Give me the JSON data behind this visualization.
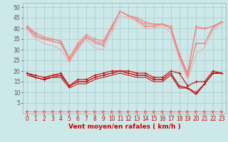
{
  "x": [
    0,
    1,
    2,
    3,
    4,
    5,
    6,
    7,
    8,
    9,
    10,
    11,
    12,
    13,
    14,
    15,
    16,
    17,
    18,
    19,
    20,
    21,
    22,
    23
  ],
  "series": [
    {
      "y": [
        41,
        38,
        36,
        35,
        34,
        26,
        33,
        37,
        35,
        34,
        41,
        48,
        46,
        45,
        43,
        42,
        42,
        41,
        28,
        19,
        41,
        40,
        41,
        43
      ],
      "color": "#f08080",
      "marker": "+",
      "lw": 0.8,
      "ms": 3
    },
    {
      "y": [
        41,
        37,
        35,
        35,
        34,
        26,
        32,
        36,
        34,
        33,
        40,
        48,
        46,
        44,
        42,
        42,
        42,
        40,
        28,
        19,
        40,
        40,
        41,
        43
      ],
      "color": "#f08080",
      "marker": null,
      "lw": 0.7,
      "ms": 0
    },
    {
      "y": [
        40,
        37,
        35,
        34,
        33,
        25,
        31,
        36,
        34,
        32,
        40,
        48,
        46,
        44,
        41,
        41,
        42,
        40,
        27,
        18,
        33,
        33,
        41,
        43
      ],
      "color": "#f08080",
      "marker": "+",
      "lw": 0.7,
      "ms": 3
    },
    {
      "y": [
        40,
        36,
        35,
        34,
        33,
        25,
        31,
        36,
        33,
        32,
        40,
        48,
        46,
        44,
        41,
        41,
        42,
        40,
        27,
        17,
        33,
        33,
        40,
        43
      ],
      "color": "#f08080",
      "marker": null,
      "lw": 0.6,
      "ms": 0
    },
    {
      "y": [
        40,
        35,
        33,
        32,
        30,
        24,
        30,
        35,
        31,
        30,
        38,
        46,
        45,
        43,
        40,
        40,
        41,
        38,
        26,
        16,
        28,
        31,
        39,
        42
      ],
      "color": "#f5a0a0",
      "marker": null,
      "lw": 0.6,
      "ms": 0
    },
    {
      "y": [
        19,
        18,
        17,
        18,
        19,
        13,
        16,
        16,
        18,
        19,
        20,
        20,
        20,
        19,
        19,
        17,
        17,
        20,
        19,
        13,
        15,
        15,
        20,
        19
      ],
      "color": "#cc0000",
      "marker": "+",
      "lw": 0.8,
      "ms": 3
    },
    {
      "y": [
        19,
        17,
        16,
        18,
        18,
        13,
        15,
        15,
        17,
        18,
        19,
        20,
        19,
        18,
        18,
        16,
        16,
        19,
        13,
        12,
        10,
        14,
        19,
        19
      ],
      "color": "#dd2020",
      "marker": "+",
      "lw": 0.8,
      "ms": 3
    },
    {
      "y": [
        19,
        17,
        16,
        17,
        18,
        13,
        15,
        15,
        17,
        18,
        19,
        20,
        19,
        18,
        18,
        16,
        16,
        19,
        13,
        12,
        9,
        14,
        19,
        19
      ],
      "color": "#cc0000",
      "marker": null,
      "lw": 0.7,
      "ms": 0
    },
    {
      "y": [
        18,
        17,
        16,
        17,
        17,
        12,
        14,
        14,
        16,
        17,
        18,
        19,
        18,
        17,
        17,
        15,
        15,
        18,
        12,
        12,
        9,
        14,
        19,
        19
      ],
      "color": "#aa0000",
      "marker": null,
      "lw": 0.7,
      "ms": 0
    },
    {
      "y": [
        1,
        1,
        1,
        1,
        1,
        1,
        1,
        1,
        1,
        1,
        1,
        1,
        1,
        1,
        1,
        1,
        1,
        1,
        1,
        1,
        1,
        1,
        1,
        1
      ],
      "color": "#ff6060",
      "marker": ">",
      "lw": 0.5,
      "ms": 2.5
    }
  ],
  "xlabel": "Vent moyen/en rafales ( km/h )",
  "xlim": [
    -0.5,
    23.5
  ],
  "ylim": [
    0,
    52
  ],
  "yticks": [
    5,
    10,
    15,
    20,
    25,
    30,
    35,
    40,
    45,
    50
  ],
  "xticks": [
    0,
    1,
    2,
    3,
    4,
    5,
    6,
    7,
    8,
    9,
    10,
    11,
    12,
    13,
    14,
    15,
    16,
    17,
    18,
    19,
    20,
    21,
    22,
    23
  ],
  "bg_color": "#cce8e8",
  "grid_color": "#aacccc",
  "label_fontsize": 6.5,
  "tick_fontsize": 5.5
}
